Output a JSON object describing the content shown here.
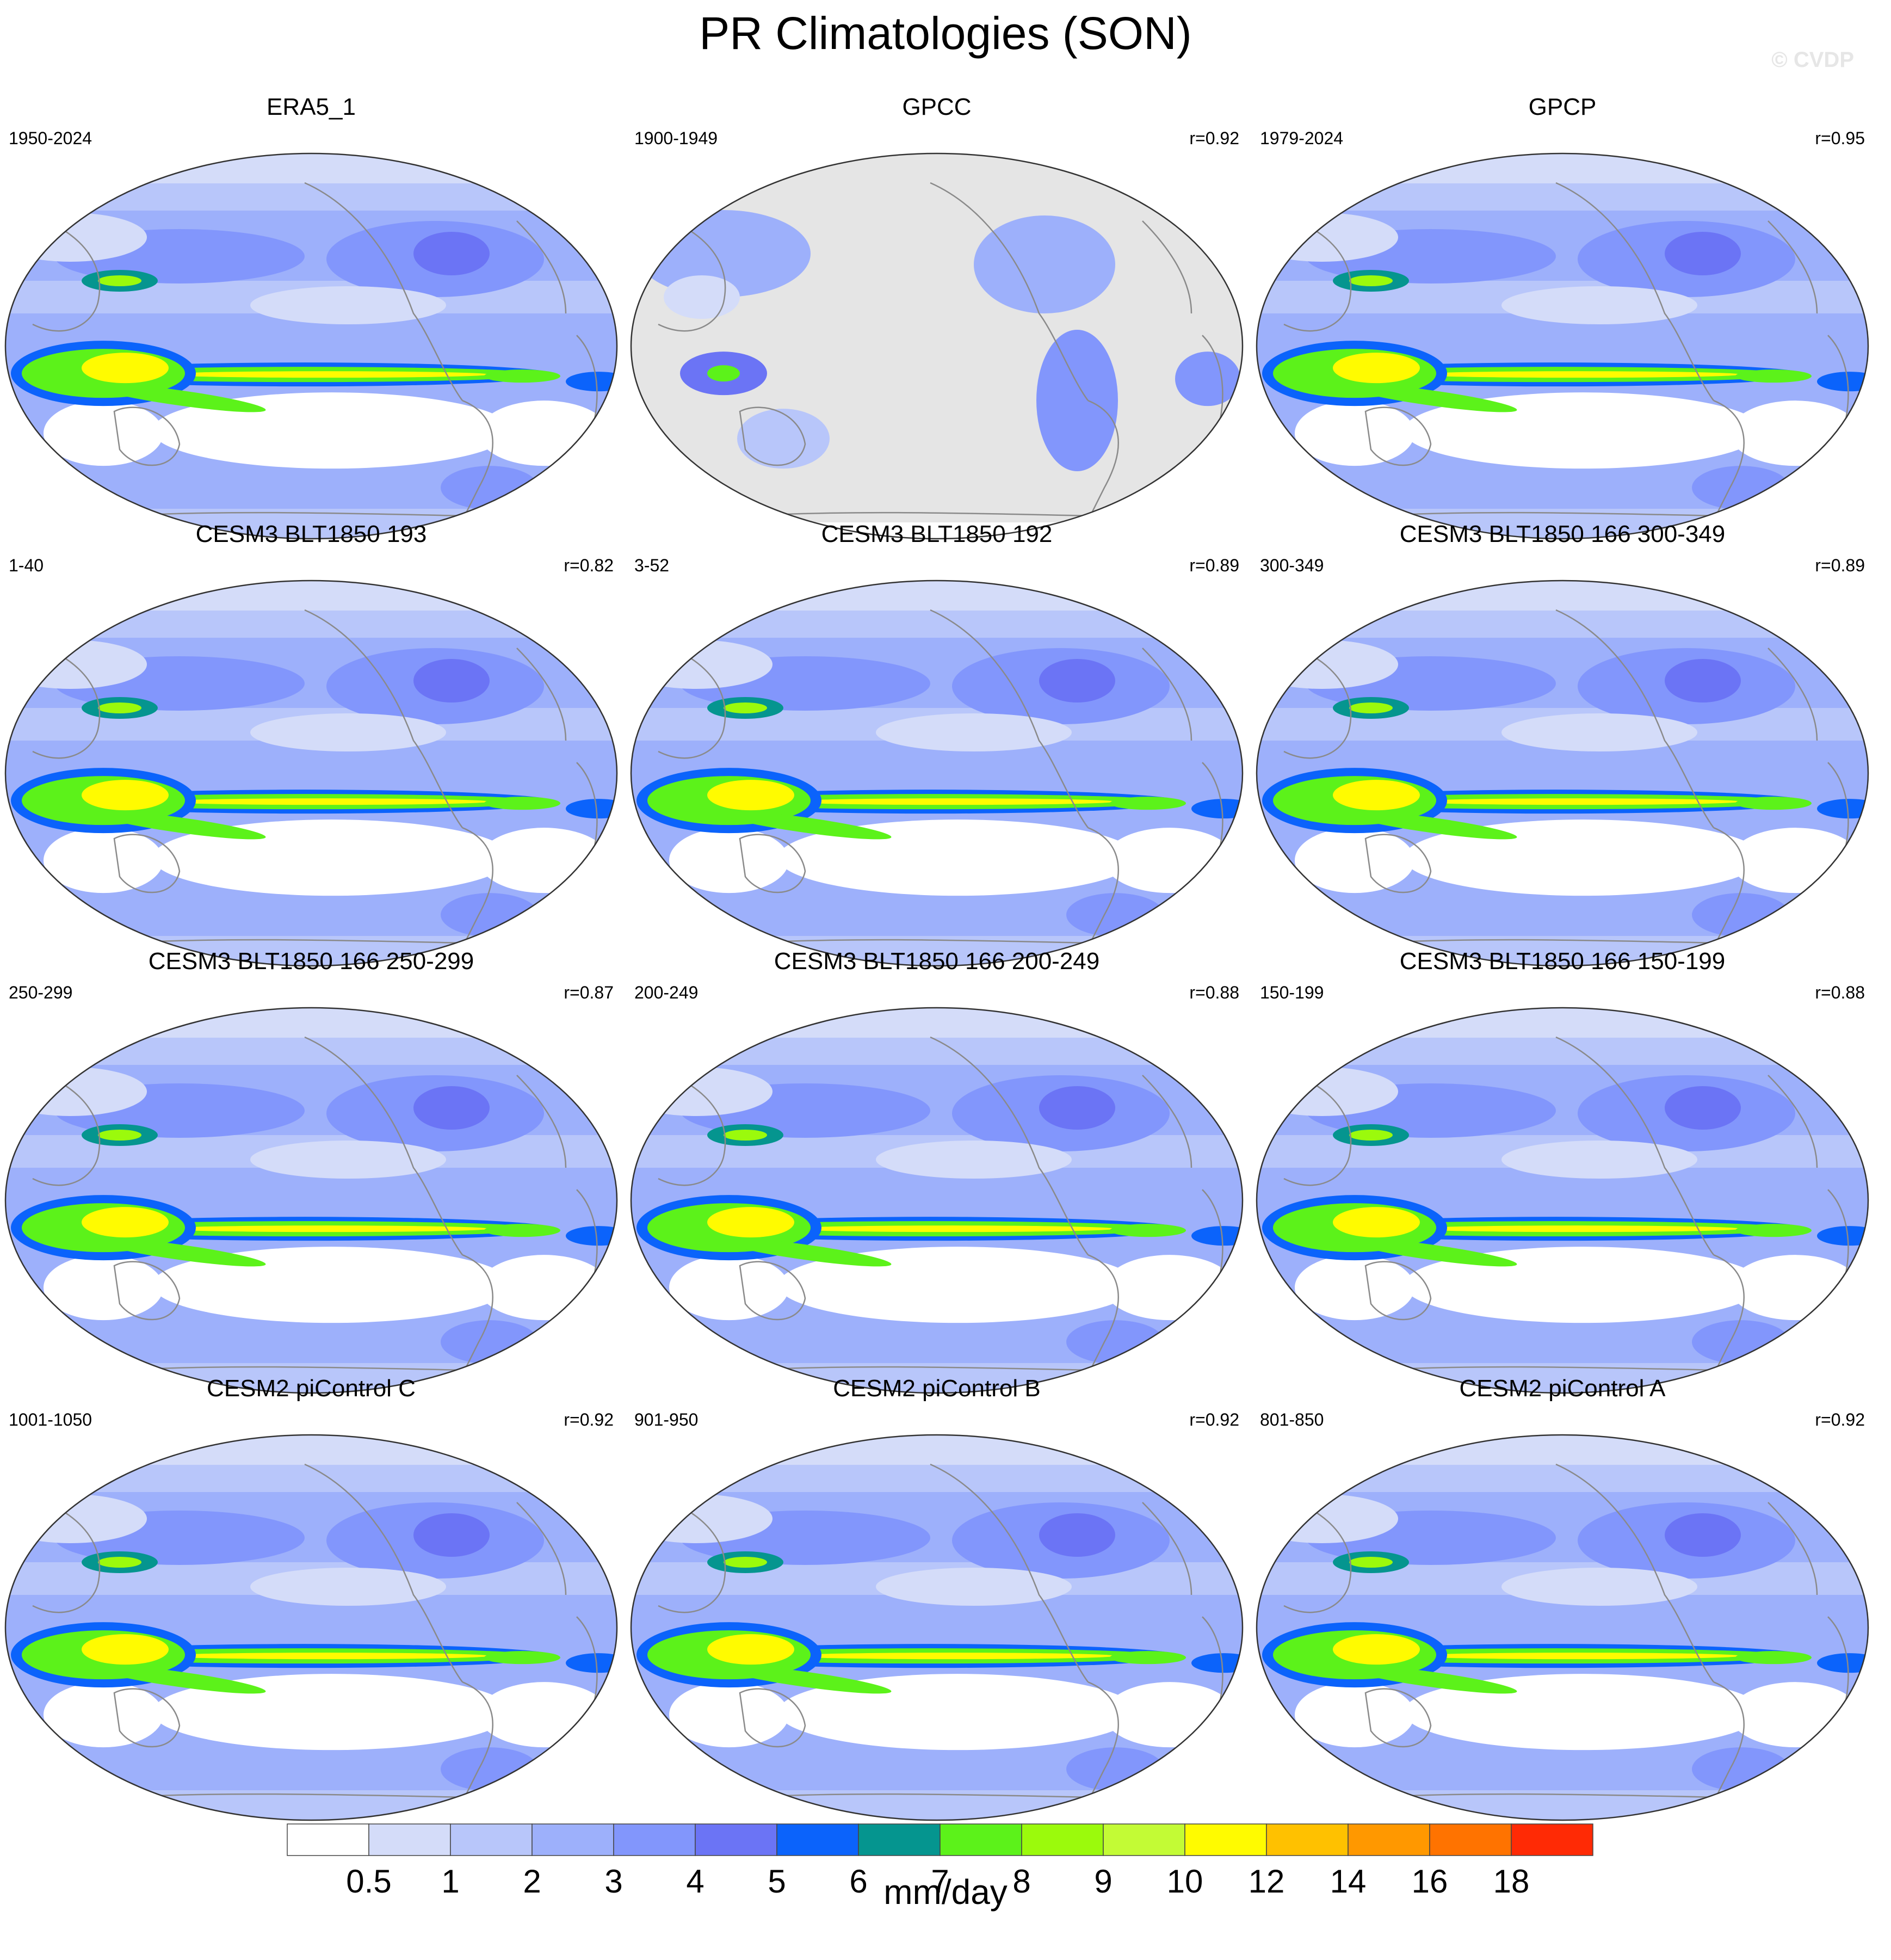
{
  "title": "PR Climatologies (SON)",
  "watermark": "© CVDP",
  "panels": [
    {
      "name": "ERA5_1",
      "period": "1950-2024",
      "corr": "",
      "kind": "full"
    },
    {
      "name": "GPCC",
      "period": "1900-1949",
      "corr": "r=0.92",
      "kind": "land"
    },
    {
      "name": "GPCP",
      "period": "1979-2024",
      "corr": "r=0.95",
      "kind": "full"
    },
    {
      "name": "CESM3 BLT1850 193",
      "period": "1-40",
      "corr": "r=0.82",
      "kind": "full"
    },
    {
      "name": "CESM3 BLT1850 192",
      "period": "3-52",
      "corr": "r=0.89",
      "kind": "full"
    },
    {
      "name": "CESM3 BLT1850 166 300-349",
      "period": "300-349",
      "corr": "r=0.89",
      "kind": "full"
    },
    {
      "name": "CESM3 BLT1850 166 250-299",
      "period": "250-299",
      "corr": "r=0.87",
      "kind": "full"
    },
    {
      "name": "CESM3 BLT1850 166 200-249",
      "period": "200-249",
      "corr": "r=0.88",
      "kind": "full"
    },
    {
      "name": "CESM3 BLT1850 166 150-199",
      "period": "150-199",
      "corr": "r=0.88",
      "kind": "full"
    },
    {
      "name": "CESM2 piControl C",
      "period": "1001-1050",
      "corr": "r=0.92",
      "kind": "full"
    },
    {
      "name": "CESM2 piControl B",
      "period": "901-950",
      "corr": "r=0.92",
      "kind": "full"
    },
    {
      "name": "CESM2 piControl A",
      "period": "801-850",
      "corr": "r=0.92",
      "kind": "full"
    }
  ],
  "colorbar": {
    "unit": "mm/day",
    "labels": [
      "0.5",
      "1",
      "2",
      "3",
      "4",
      "5",
      "6",
      "7",
      "8",
      "9",
      "10",
      "12",
      "14",
      "16",
      "18"
    ],
    "colors": [
      "#ffffff",
      "#d4dcf9",
      "#b8c6fa",
      "#9db0fb",
      "#8296fc",
      "#6b74f5",
      "#0b63fb",
      "#05958f",
      "#5cf21a",
      "#9bfa0c",
      "#c3fb35",
      "#fffb00",
      "#ffc100",
      "#ff9800",
      "#ff7300",
      "#ff2a05"
    ]
  },
  "colors": {
    "ocean_default": "#9db0fb",
    "land_mask": "#e5e5e5",
    "coast": "#8a8a8a"
  }
}
